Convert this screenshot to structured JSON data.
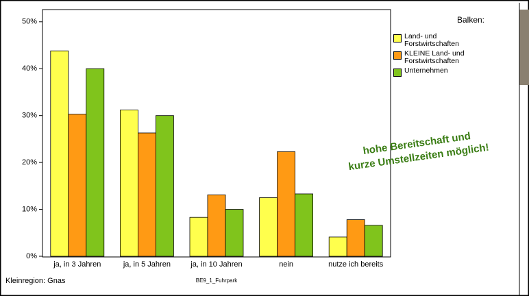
{
  "chart_data": {
    "type": "bar",
    "categories": [
      "ja, in 3 Jahren",
      "ja, in 5 Jahren",
      "ja, in 10 Jahren",
      "nein",
      "nutze ich bereits"
    ],
    "series": [
      {
        "name": "Land- und Forstwirtschaften",
        "color": "#ffff4d",
        "values": [
          43.8,
          31.2,
          8.3,
          12.5,
          4.1
        ]
      },
      {
        "name": "KLEINE Land- und Forstwirtschaften",
        "color": "#ff9a14",
        "values": [
          30.3,
          26.3,
          13.1,
          22.3,
          7.8
        ]
      },
      {
        "name": "Unternehmen",
        "color": "#80c41c",
        "values": [
          40.0,
          30.0,
          10.0,
          13.3,
          6.6
        ]
      }
    ],
    "ylim": [
      0,
      52.6
    ],
    "yticks": [
      {
        "value": 0,
        "label": "0%"
      },
      {
        "value": 10,
        "label": "10%"
      },
      {
        "value": 20,
        "label": "20%"
      },
      {
        "value": 30,
        "label": "30%"
      },
      {
        "value": 40,
        "label": "40%"
      },
      {
        "value": 50,
        "label": "50%"
      }
    ],
    "x_label": "BE9_1_Fuhrpark",
    "legend_title": "Balken:",
    "footnote": "Kleinregion: Gnas",
    "annotation": [
      "hohe Bereitschaft und",
      "kurze Umstellzeiten möglich!"
    ],
    "grid": false
  }
}
